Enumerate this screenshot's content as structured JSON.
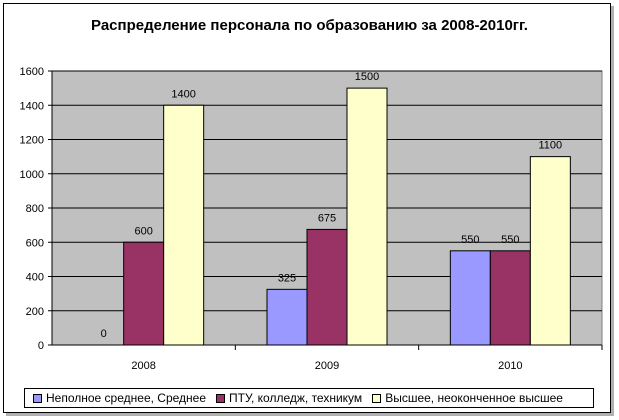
{
  "chart_data": {
    "type": "bar",
    "title": "Распределение персонала по образованию за 2008-2010гг.",
    "categories": [
      "2008",
      "2009",
      "2010"
    ],
    "series": [
      {
        "name": "Неполное среднее, Среднее",
        "values": [
          0,
          325,
          550
        ],
        "color": "#9999FF"
      },
      {
        "name": "ПТУ, колледж, техникум",
        "values": [
          600,
          675,
          550
        ],
        "color": "#993366"
      },
      {
        "name": "Высшее, неоконченное высшее",
        "values": [
          1400,
          1500,
          1100
        ],
        "color": "#FFFFCC"
      }
    ],
    "ylim": [
      0,
      1600
    ],
    "yticks": [
      "0",
      "200",
      "400",
      "600",
      "800",
      "1000",
      "1200",
      "1400",
      "1600"
    ],
    "grid": true,
    "plot_background": "#C0C0C0",
    "legend_position": "bottom"
  }
}
